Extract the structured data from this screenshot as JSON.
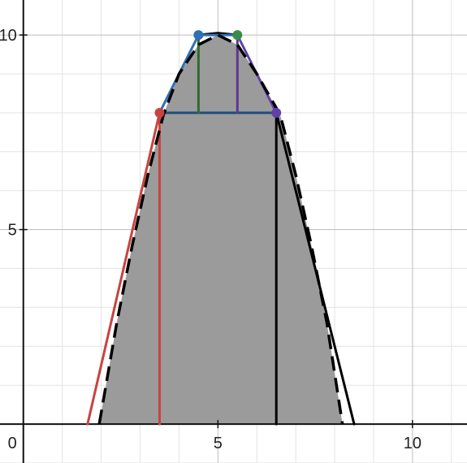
{
  "chart_data": {
    "type": "line",
    "title": "",
    "xlabel": "",
    "ylabel": "",
    "xlim": [
      -0.6,
      11.4
    ],
    "ylim": [
      -1.0,
      10.9
    ],
    "grid": true,
    "minor_grid_step": 1,
    "major_grid_step": 5,
    "origin_label": "0",
    "x_ticks": [
      {
        "value": 5,
        "label": "5"
      },
      {
        "value": 10,
        "label": "10"
      }
    ],
    "y_ticks": [
      {
        "value": 5,
        "label": "5"
      },
      {
        "value": 10,
        "label": "10"
      }
    ],
    "shaded_region": {
      "color": "#9b9b9b",
      "boundary": [
        [
          1.95,
          0
        ],
        [
          2.4,
          2.6
        ],
        [
          2.8,
          4.6
        ],
        [
          3.2,
          6.4
        ],
        [
          3.6,
          7.95
        ],
        [
          4.0,
          9.0
        ],
        [
          4.5,
          9.75
        ],
        [
          5.0,
          10.0
        ],
        [
          5.5,
          9.75
        ],
        [
          6.0,
          9.0
        ],
        [
          6.6,
          7.95
        ],
        [
          7.0,
          6.4
        ],
        [
          7.4,
          4.6
        ],
        [
          7.8,
          2.6
        ],
        [
          8.2,
          0
        ]
      ]
    },
    "curves": [
      {
        "color": "#c74440",
        "dashed": false,
        "points": [
          [
            1.65,
            0
          ],
          [
            3.5,
            8
          ]
        ]
      },
      {
        "color": "#000000",
        "dashed": false,
        "points": [
          [
            6.5,
            8
          ],
          [
            8.5,
            0
          ]
        ]
      },
      {
        "color": "#2d70b3",
        "dashed": false,
        "points": [
          [
            3.5,
            8
          ],
          [
            4.5,
            10
          ]
        ]
      },
      {
        "color": "#6042a6",
        "dashed": false,
        "points": [
          [
            5.5,
            10
          ],
          [
            6.5,
            8
          ]
        ]
      },
      {
        "color": "#000000",
        "dashed": false,
        "points": [
          [
            4.5,
            10
          ],
          [
            4.7,
            10.02
          ],
          [
            5.0,
            10.05
          ],
          [
            5.3,
            10.02
          ],
          [
            5.5,
            10
          ]
        ]
      },
      {
        "color": "#2d70b3",
        "dashed": false,
        "points": [
          [
            4.5,
            10
          ],
          [
            5.5,
            10
          ]
        ]
      },
      {
        "color": "#1f4e79",
        "dashed": false,
        "points": [
          [
            3.5,
            8
          ],
          [
            6.5,
            8
          ]
        ]
      },
      {
        "color": "#c74440",
        "dashed": false,
        "points": [
          [
            3.5,
            0
          ],
          [
            3.5,
            8
          ]
        ]
      },
      {
        "color": "#2e6b2e",
        "dashed": false,
        "points": [
          [
            4.5,
            8
          ],
          [
            4.5,
            10
          ]
        ]
      },
      {
        "color": "#5b3a8c",
        "dashed": false,
        "points": [
          [
            5.5,
            8
          ],
          [
            5.5,
            10
          ]
        ]
      },
      {
        "color": "#000000",
        "dashed": false,
        "points": [
          [
            6.5,
            0
          ],
          [
            6.5,
            8
          ]
        ]
      },
      {
        "color": "#000000",
        "dashed": true,
        "points": [
          [
            1.95,
            0
          ],
          [
            2.4,
            2.6
          ],
          [
            2.8,
            4.6
          ],
          [
            3.2,
            6.4
          ],
          [
            3.6,
            7.95
          ],
          [
            4.0,
            9.0
          ],
          [
            4.5,
            9.75
          ],
          [
            5.0,
            10.0
          ],
          [
            5.5,
            9.75
          ],
          [
            6.0,
            9.0
          ],
          [
            6.6,
            7.95
          ],
          [
            7.0,
            6.4
          ],
          [
            7.4,
            4.6
          ],
          [
            7.8,
            2.6
          ],
          [
            8.2,
            0
          ]
        ]
      }
    ],
    "points": [
      {
        "x": 3.5,
        "y": 8,
        "color": "#c74440"
      },
      {
        "x": 4.5,
        "y": 10,
        "color": "#2d70b3"
      },
      {
        "x": 5.5,
        "y": 10,
        "color": "#388c46"
      },
      {
        "x": 6.5,
        "y": 8,
        "color": "#6042a6"
      }
    ]
  }
}
